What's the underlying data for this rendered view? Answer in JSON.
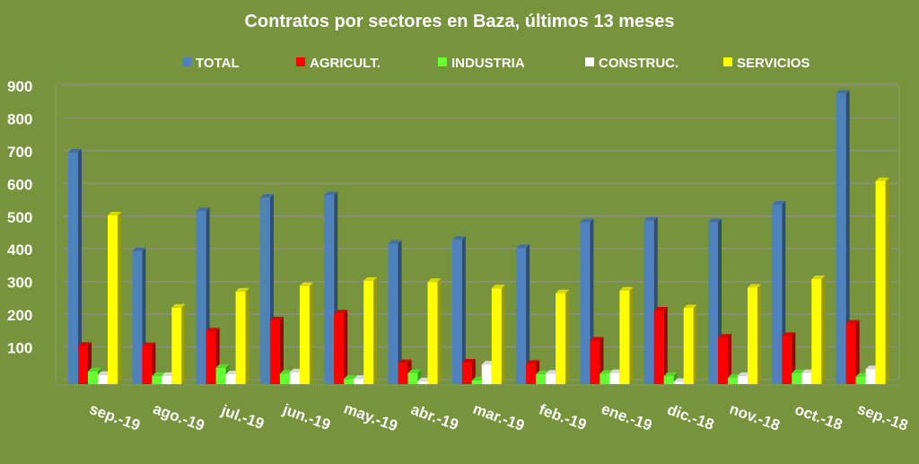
{
  "chart_data": {
    "type": "bar",
    "title": "Contratos por sectores en Baza, últimos 13 meses",
    "xlabel": "",
    "ylabel": "",
    "ylim": [
      0,
      900
    ],
    "yticks": [
      100,
      200,
      300,
      400,
      500,
      600,
      700,
      800,
      900
    ],
    "grid": true,
    "legend_position": "top",
    "categories": [
      "sep.-19",
      "ago.-19",
      "jul.-19",
      "jun.-19",
      "may.-19",
      "abr.-19",
      "mar.-19",
      "feb.-19",
      "ene.-19",
      "dic.-18",
      "nov.-18",
      "oct.-18",
      "sep.-18"
    ],
    "series": [
      {
        "name": "TOTAL",
        "color": "#4f81bd",
        "values": [
          708,
          406,
          529,
          570,
          578,
          429,
          441,
          416,
          495,
          500,
          495,
          549,
          888
        ]
      },
      {
        "name": "AGRICULT.",
        "color": "#ff0000",
        "values": [
          117,
          116,
          161,
          195,
          216,
          64,
          66,
          62,
          133,
          225,
          142,
          147,
          185
        ]
      },
      {
        "name": "INDUSTRIA",
        "color": "#66ff33",
        "values": [
          39,
          25,
          50,
          32,
          16,
          34,
          11,
          30,
          32,
          25,
          20,
          34,
          23
        ]
      },
      {
        "name": "CONSTRUC.",
        "color": "#ffffff",
        "values": [
          28,
          25,
          30,
          36,
          16,
          9,
          60,
          32,
          34,
          7,
          25,
          34,
          46
        ]
      },
      {
        "name": "SERVICIOS",
        "color": "#ffff00",
        "values": [
          516,
          234,
          283,
          300,
          316,
          312,
          293,
          278,
          286,
          232,
          295,
          321,
          621
        ]
      }
    ]
  }
}
